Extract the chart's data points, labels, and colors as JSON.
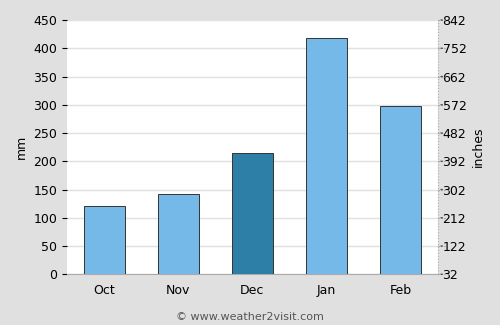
{
  "categories": [
    "Oct",
    "Nov",
    "Dec",
    "Jan",
    "Feb"
  ],
  "values": [
    120,
    142,
    215,
    418,
    298
  ],
  "bar_colors": [
    "#74b9e8",
    "#74b9e8",
    "#2e7fa8",
    "#74b9e8",
    "#74b9e8"
  ],
  "bar_edge_color": "#333333",
  "ylabel_left": "mm",
  "ylabel_right": "inches",
  "ylim_left": [
    0,
    450
  ],
  "ylim_right": [
    32,
    842
  ],
  "yticks_left": [
    0,
    50,
    100,
    150,
    200,
    250,
    300,
    350,
    400,
    450
  ],
  "yticks_right": [
    32,
    122,
    212,
    302,
    392,
    482,
    572,
    662,
    752,
    842
  ],
  "figure_bg_color": "#e0e0e0",
  "plot_bg_color": "#ffffff",
  "grid_color": "#e0e0e0",
  "footer_text": "© www.weather2visit.com",
  "footer_fontsize": 8,
  "axis_fontsize": 9,
  "label_fontsize": 9
}
